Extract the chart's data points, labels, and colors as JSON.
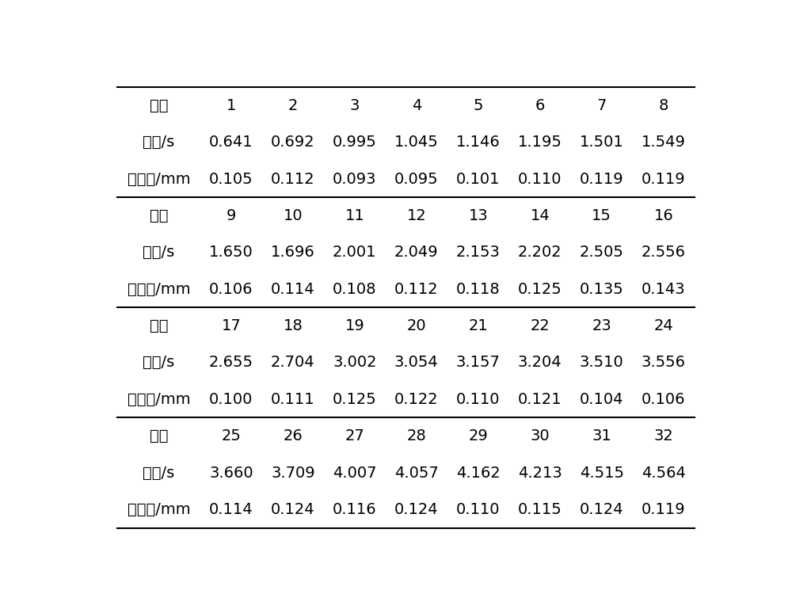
{
  "sections": [
    {
      "seq": [
        "1",
        "2",
        "3",
        "4",
        "5",
        "6",
        "7",
        "8"
      ],
      "time": [
        "0.641",
        "0.692",
        "0.995",
        "1.045",
        "1.146",
        "1.195",
        "1.501",
        "1.549"
      ],
      "disp": [
        "0.105",
        "0.112",
        "0.093",
        "0.095",
        "0.101",
        "0.110",
        "0.119",
        "0.119"
      ]
    },
    {
      "seq": [
        "9",
        "10",
        "11",
        "12",
        "13",
        "14",
        "15",
        "16"
      ],
      "time": [
        "1.650",
        "1.696",
        "2.001",
        "2.049",
        "2.153",
        "2.202",
        "2.505",
        "2.556"
      ],
      "disp": [
        "0.106",
        "0.114",
        "0.108",
        "0.112",
        "0.118",
        "0.125",
        "0.135",
        "0.143"
      ]
    },
    {
      "seq": [
        "17",
        "18",
        "19",
        "20",
        "21",
        "22",
        "23",
        "24"
      ],
      "time": [
        "2.655",
        "2.704",
        "3.002",
        "3.054",
        "3.157",
        "3.204",
        "3.510",
        "3.556"
      ],
      "disp": [
        "0.100",
        "0.111",
        "0.125",
        "0.122",
        "0.110",
        "0.121",
        "0.104",
        "0.106"
      ]
    },
    {
      "seq": [
        "25",
        "26",
        "27",
        "28",
        "29",
        "30",
        "31",
        "32"
      ],
      "time": [
        "3.660",
        "3.709",
        "4.007",
        "4.057",
        "4.162",
        "4.213",
        "4.515",
        "4.564"
      ],
      "disp": [
        "0.114",
        "0.124",
        "0.116",
        "0.124",
        "0.110",
        "0.115",
        "0.124",
        "0.119"
      ]
    }
  ],
  "row_labels": [
    "序号",
    "时间/s",
    "动位移/mm"
  ],
  "bg_color": "#ffffff",
  "text_color": "#000000",
  "line_color": "#000000",
  "font_size": 14,
  "label_font_size": 14
}
